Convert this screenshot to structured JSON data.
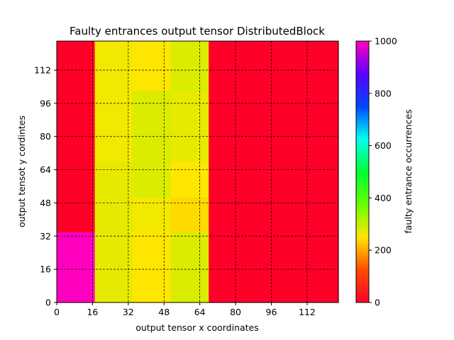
{
  "chart_data": {
    "type": "heatmap",
    "title": "Faulty entrances output tensor DistributedBlock",
    "xlabel": "output tensor x coordinates",
    "ylabel": "output tensot y cordintes",
    "xlim": [
      0,
      126
    ],
    "ylim": [
      0,
      126
    ],
    "x_ticks": [
      "0",
      "16",
      "32",
      "48",
      "64",
      "80",
      "96",
      "112"
    ],
    "y_ticks": [
      "0",
      "16",
      "32",
      "48",
      "64",
      "80",
      "96",
      "112"
    ],
    "grid": true,
    "colormap": "gist_rainbow_r",
    "colorbar": {
      "label": "faulty entrance occurrences",
      "range": [
        0,
        1000
      ],
      "ticks": [
        "0",
        "200",
        "400",
        "600",
        "800",
        "1000"
      ],
      "stops": [
        "#ff0029",
        "#ff4d00",
        "#ffe600",
        "#66ff00",
        "#00ff33",
        "#00ffee",
        "#0047ff",
        "#5c00ff",
        "#ff00bf"
      ]
    },
    "cells": {
      "x_edges": [
        0,
        17,
        34,
        51,
        68,
        85,
        102,
        119,
        126
      ],
      "y_edges": [
        0,
        17,
        34,
        51,
        68,
        85,
        102,
        119,
        126
      ],
      "rows_bottom_to_top": [
        [
          1000,
          270,
          250,
          280,
          0,
          0,
          0,
          0
        ],
        [
          1000,
          270,
          250,
          280,
          0,
          0,
          0,
          0
        ],
        [
          0,
          270,
          260,
          240,
          0,
          0,
          0,
          0
        ],
        [
          0,
          270,
          280,
          250,
          0,
          0,
          0,
          0
        ],
        [
          0,
          260,
          280,
          270,
          0,
          0,
          0,
          0
        ],
        [
          0,
          260,
          280,
          270,
          0,
          0,
          0,
          0
        ],
        [
          0,
          260,
          250,
          280,
          0,
          0,
          0,
          0
        ],
        [
          0,
          260,
          250,
          280,
          0,
          0,
          0,
          0
        ]
      ]
    }
  }
}
